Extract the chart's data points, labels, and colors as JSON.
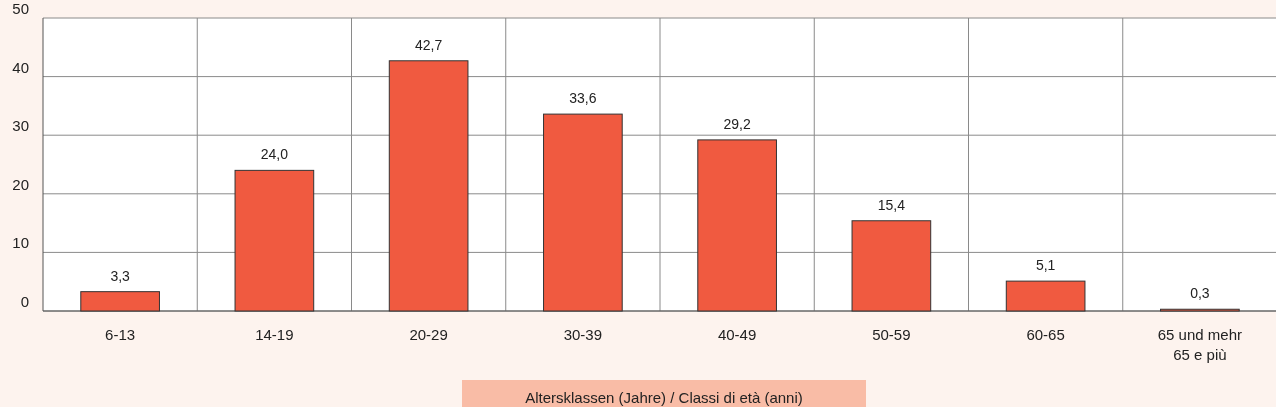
{
  "chart_data": {
    "type": "bar",
    "xlabel": "Altersklassen (Jahre) / Classi di età (anni)",
    "categories": [
      "6-13",
      "14-19",
      "20-29",
      "30-39",
      "40-49",
      "50-59",
      "60-65",
      "65 und mehr\n65 e più"
    ],
    "values": [
      3.3,
      24.0,
      42.7,
      33.6,
      29.2,
      15.4,
      5.1,
      0.3
    ],
    "value_labels": [
      "3,3",
      "24,0",
      "42,7",
      "33,6",
      "29,2",
      "15,4",
      "5,1",
      "0,3"
    ],
    "color": "#f05a40",
    "ylim": [
      0,
      50
    ],
    "yticks": [
      0,
      10,
      20,
      30,
      40,
      50
    ],
    "grid": true
  }
}
